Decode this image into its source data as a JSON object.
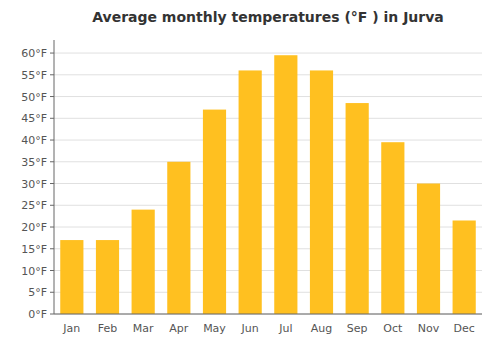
{
  "chart_data": {
    "type": "bar",
    "title": "Average monthly temperatures (°F ) in Jurva",
    "categories": [
      "Jan",
      "Feb",
      "Mar",
      "Apr",
      "May",
      "Jun",
      "Jul",
      "Aug",
      "Sep",
      "Oct",
      "Nov",
      "Dec"
    ],
    "values": [
      17,
      17,
      24,
      35,
      47,
      56,
      59.5,
      56,
      48.5,
      39.5,
      30,
      21.5
    ],
    "color": "#FFC020",
    "ylim": [
      0,
      63
    ],
    "yticks": [
      {
        "value": 0,
        "label": "0°F"
      },
      {
        "value": 5,
        "label": "5°F"
      },
      {
        "value": 10,
        "label": "10°F"
      },
      {
        "value": 15,
        "label": "15°F"
      },
      {
        "value": 20,
        "label": "20°F"
      },
      {
        "value": 25,
        "label": "25°F"
      },
      {
        "value": 30,
        "label": "30°F"
      },
      {
        "value": 35,
        "label": "35°F"
      },
      {
        "value": 40,
        "label": "40°F"
      },
      {
        "value": 45,
        "label": "45°F"
      },
      {
        "value": 50,
        "label": "50°F"
      },
      {
        "value": 55,
        "label": "55°F"
      },
      {
        "value": 60,
        "label": "60°F"
      }
    ],
    "grid": true
  }
}
